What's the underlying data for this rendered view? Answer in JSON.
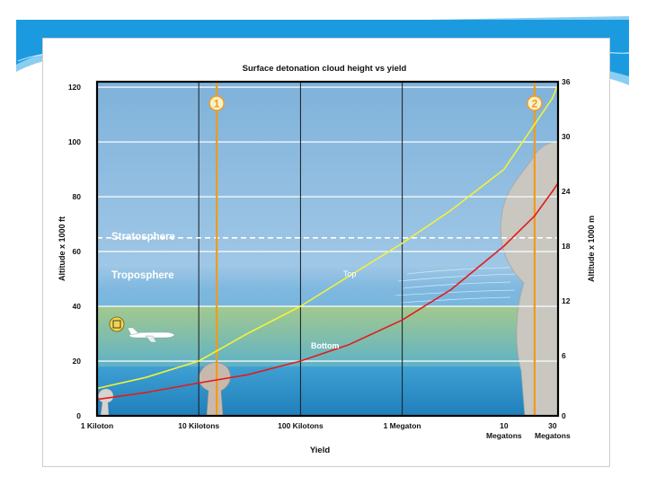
{
  "chart_data": {
    "type": "line",
    "title": "Surface detonation cloud height vs yield",
    "xlabel": "Yield",
    "ylabel": "Altitude x 1000 ft",
    "ylabel_right": "Altitude x 1000 m",
    "x_scale": "log",
    "x_ticks": [
      {
        "value": 1,
        "label_lines": [
          "1 Kiloton"
        ]
      },
      {
        "value": 10,
        "label_lines": [
          "10 Kilotons"
        ]
      },
      {
        "value": 100,
        "label_lines": [
          "100 Kilotons"
        ]
      },
      {
        "value": 1000,
        "label_lines": [
          "1 Megaton"
        ]
      },
      {
        "value": 10000,
        "label_lines": [
          "10",
          "Megatons"
        ]
      },
      {
        "value": 30000,
        "label_lines": [
          "30",
          "Megatons"
        ]
      }
    ],
    "xlim": [
      1,
      34000
    ],
    "ylim": [
      0,
      122
    ],
    "y_ticks_left": [
      0,
      20,
      40,
      60,
      80,
      100,
      120
    ],
    "y_ticks_right": [
      0,
      6,
      12,
      18,
      24,
      30,
      36
    ],
    "grid": true,
    "series": [
      {
        "name": "Top",
        "color": "#f2f23a",
        "points": [
          [
            1,
            10
          ],
          [
            3,
            14
          ],
          [
            10,
            20
          ],
          [
            30,
            30
          ],
          [
            100,
            40
          ],
          [
            300,
            51
          ],
          [
            1000,
            63
          ],
          [
            3000,
            75
          ],
          [
            10000,
            90
          ],
          [
            30000,
            116
          ],
          [
            34000,
            121
          ]
        ]
      },
      {
        "name": "Bottom",
        "color": "#e21b1b",
        "points": [
          [
            1,
            6
          ],
          [
            3,
            8.5
          ],
          [
            10,
            12
          ],
          [
            30,
            15
          ],
          [
            100,
            20
          ],
          [
            300,
            26
          ],
          [
            1000,
            35
          ],
          [
            3000,
            46
          ],
          [
            10000,
            62
          ],
          [
            20000,
            73
          ],
          [
            30000,
            82
          ],
          [
            34000,
            85
          ]
        ]
      }
    ],
    "region_labels": {
      "stratosphere": "Stratosphere",
      "troposphere": "Troposphere"
    },
    "tropopause_altitude": 65,
    "markers": [
      {
        "label": "1",
        "x": 15
      },
      {
        "label": "2",
        "x": 20000
      }
    ],
    "colors": {
      "sky_top": "#86b6dc",
      "sky_low": "#9ccbe6",
      "haze": "#a2c68f",
      "ground": "#2b93c8",
      "plot_border": "#000000",
      "marker_line": "#f19a1c"
    }
  }
}
